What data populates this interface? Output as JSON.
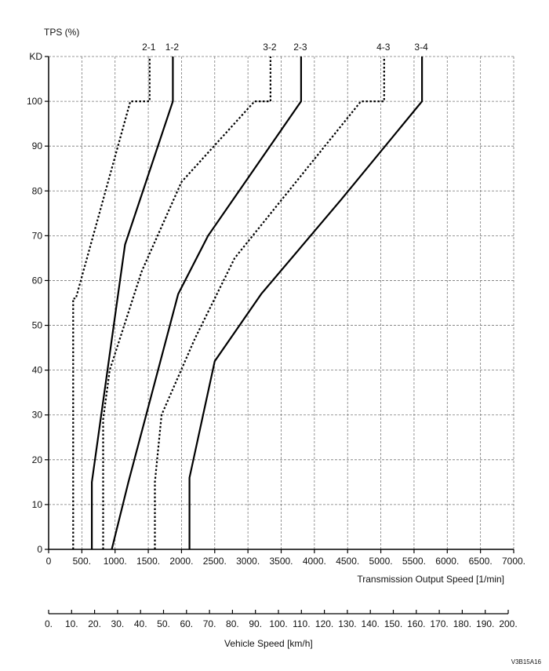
{
  "chart_data": {
    "type": "line",
    "title": "",
    "ylabel": "TPS (%)",
    "xlabel": "Transmission Output Speed [1/min]",
    "x2label": "Vehicle Speed [km/h]",
    "code": "V3B15A16",
    "xlim": [
      0,
      7000
    ],
    "ylim": [
      0,
      110
    ],
    "grid": true,
    "y_ticks": [
      {
        "v": 0,
        "t": "0"
      },
      {
        "v": 10,
        "t": "10"
      },
      {
        "v": 20,
        "t": "20"
      },
      {
        "v": 30,
        "t": "30"
      },
      {
        "v": 40,
        "t": "40"
      },
      {
        "v": 50,
        "t": "50"
      },
      {
        "v": 60,
        "t": "60"
      },
      {
        "v": 70,
        "t": "70"
      },
      {
        "v": 80,
        "t": "80"
      },
      {
        "v": 90,
        "t": "90"
      },
      {
        "v": 100,
        "t": "100"
      },
      {
        "v": 110,
        "t": "KD"
      }
    ],
    "x_ticks": [
      {
        "v": 0,
        "t": "0"
      },
      {
        "v": 500,
        "t": "500."
      },
      {
        "v": 1000,
        "t": "1000."
      },
      {
        "v": 1500,
        "t": "1500."
      },
      {
        "v": 2000,
        "t": "2000."
      },
      {
        "v": 2500,
        "t": "2500."
      },
      {
        "v": 3000,
        "t": "3000."
      },
      {
        "v": 3500,
        "t": "3500."
      },
      {
        "v": 4000,
        "t": "4000."
      },
      {
        "v": 4500,
        "t": "4500."
      },
      {
        "v": 5000,
        "t": "5000."
      },
      {
        "v": 5500,
        "t": "5500."
      },
      {
        "v": 6000,
        "t": "6000."
      },
      {
        "v": 6500,
        "t": "6500."
      },
      {
        "v": 7000,
        "t": "7000."
      }
    ],
    "x2_ticks": [
      {
        "v": 0,
        "t": "0."
      },
      {
        "v": 10,
        "t": "10."
      },
      {
        "v": 20,
        "t": "20."
      },
      {
        "v": 30,
        "t": "30."
      },
      {
        "v": 40,
        "t": "40."
      },
      {
        "v": 50,
        "t": "50."
      },
      {
        "v": 60,
        "t": "60."
      },
      {
        "v": 70,
        "t": "70."
      },
      {
        "v": 80,
        "t": "80."
      },
      {
        "v": 90,
        "t": "90."
      },
      {
        "v": 100,
        "t": "100."
      },
      {
        "v": 110,
        "t": "110."
      },
      {
        "v": 120,
        "t": "120."
      },
      {
        "v": 130,
        "t": "130."
      },
      {
        "v": 140,
        "t": "140."
      },
      {
        "v": 150,
        "t": "150."
      },
      {
        "v": 160,
        "t": "160."
      },
      {
        "v": 170,
        "t": "170."
      },
      {
        "v": 180,
        "t": "180."
      },
      {
        "v": 190,
        "t": "190."
      },
      {
        "v": 200,
        "t": "200."
      }
    ],
    "series": [
      {
        "name": "2-1",
        "style": "dotted",
        "x": [
          370,
          370,
          410,
          1230,
          1520,
          1520
        ],
        "y": [
          0,
          56,
          56,
          100,
          100,
          110
        ]
      },
      {
        "name": "1-2",
        "style": "solid",
        "x": [
          650,
          650,
          1150,
          1870,
          1870
        ],
        "y": [
          0,
          15,
          68,
          100,
          110
        ]
      },
      {
        "name": "3-2",
        "style": "dotted",
        "x": [
          820,
          820,
          920,
          1400,
          2000,
          3100,
          3340,
          3340
        ],
        "y": [
          0,
          29,
          40,
          62,
          82,
          100,
          100,
          110
        ]
      },
      {
        "name": "2-3",
        "style": "solid",
        "x": [
          950,
          1200,
          1950,
          2400,
          3800,
          3800
        ],
        "y": [
          0,
          15,
          57,
          70,
          100,
          110
        ]
      },
      {
        "name": "4-3",
        "style": "dotted",
        "x": [
          1600,
          1600,
          1700,
          2200,
          2800,
          4700,
          5050,
          5050
        ],
        "y": [
          0,
          15,
          30,
          47,
          65,
          100,
          100,
          110
        ]
      },
      {
        "name": "3-4",
        "style": "solid",
        "x": [
          2120,
          2120,
          2500,
          3200,
          4400,
          5620,
          5620
        ],
        "y": [
          0,
          16,
          42,
          57,
          78,
          100,
          110
        ]
      }
    ]
  }
}
